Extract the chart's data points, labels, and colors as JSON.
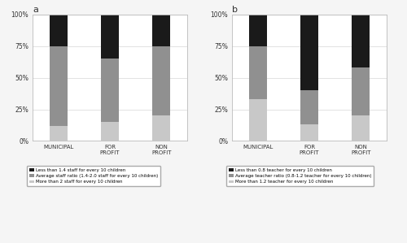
{
  "chart_a": {
    "title": "a",
    "categories": [
      "MUNICIPAL",
      "FOR\nPROFIT",
      "NON\nPROFIT"
    ],
    "light": [
      12,
      15,
      20
    ],
    "medium": [
      63,
      50,
      55
    ],
    "dark": [
      25,
      35,
      25
    ],
    "legend": [
      "Less than 1.4 staff for every 10 children",
      "Average staff ratio (1.4-2.0 staff for every 10 children)",
      "More than 2 staff for every 10 children"
    ]
  },
  "chart_b": {
    "title": "b",
    "categories": [
      "MUNICIPAL",
      "FOR\nPROFIT",
      "NON\nPROFIT"
    ],
    "light": [
      33,
      13,
      20
    ],
    "medium": [
      42,
      27,
      38
    ],
    "dark": [
      25,
      60,
      42
    ],
    "legend": [
      "Less than 0.8 teacher for every 10 children",
      "Average teacher ratio (0.8-1.2 teacher for every 10 children)",
      "More than 1.2 teacher for every 10 children"
    ]
  },
  "colors": {
    "light": "#c8c8c8",
    "medium": "#909090",
    "dark": "#1a1a1a"
  },
  "background": "#f5f5f5",
  "plot_bg": "#ffffff",
  "ylim": [
    0,
    100
  ],
  "yticks": [
    0,
    25,
    50,
    75,
    100
  ],
  "yticklabels": [
    "0%",
    "25%",
    "50%",
    "75%",
    "100%"
  ]
}
